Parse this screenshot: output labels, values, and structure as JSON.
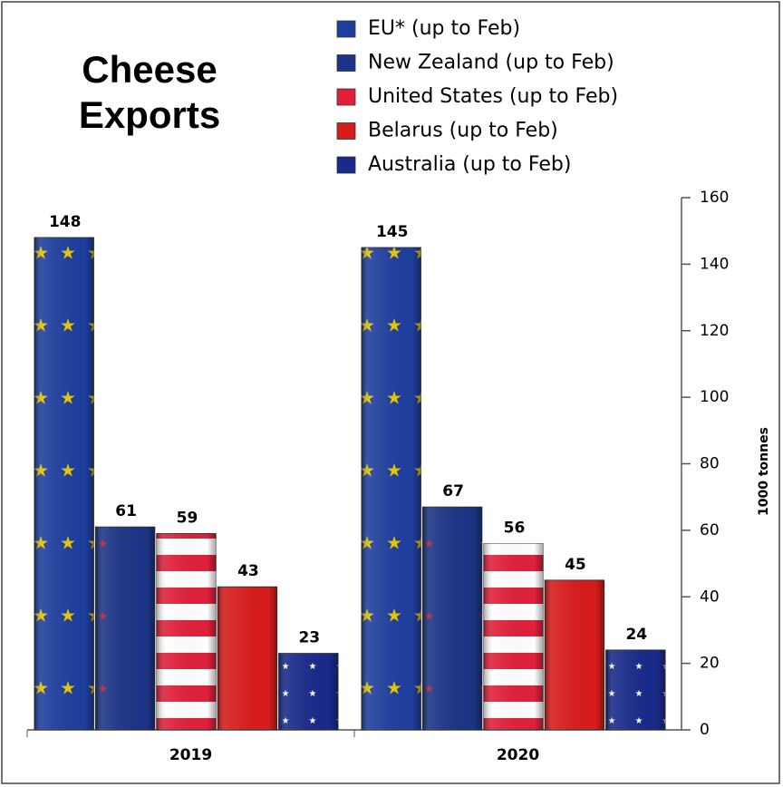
{
  "chart_data": {
    "type": "bar",
    "title": "Cheese Exports",
    "y_label": "1000 tonnes",
    "categories": [
      "2019",
      "2020"
    ],
    "series": [
      {
        "name": "EU* (up to Feb)",
        "color": "#1f3f9e",
        "values": [
          148,
          145
        ]
      },
      {
        "name": "New Zealand (up to Feb)",
        "color": "#1c3486",
        "values": [
          61,
          67
        ]
      },
      {
        "name": "United States (up to Feb)",
        "color": "#e0203a",
        "values": [
          59,
          56
        ]
      },
      {
        "name": "Belarus (up to Feb)",
        "color": "#d81c1c",
        "values": [
          43,
          45
        ]
      },
      {
        "name": "Australia (up to Feb)",
        "color": "#1a2a8a",
        "values": [
          23,
          24
        ]
      }
    ],
    "ylim": [
      0,
      160
    ],
    "yticks": [
      0,
      20,
      40,
      60,
      80,
      100,
      120,
      140,
      160
    ]
  }
}
